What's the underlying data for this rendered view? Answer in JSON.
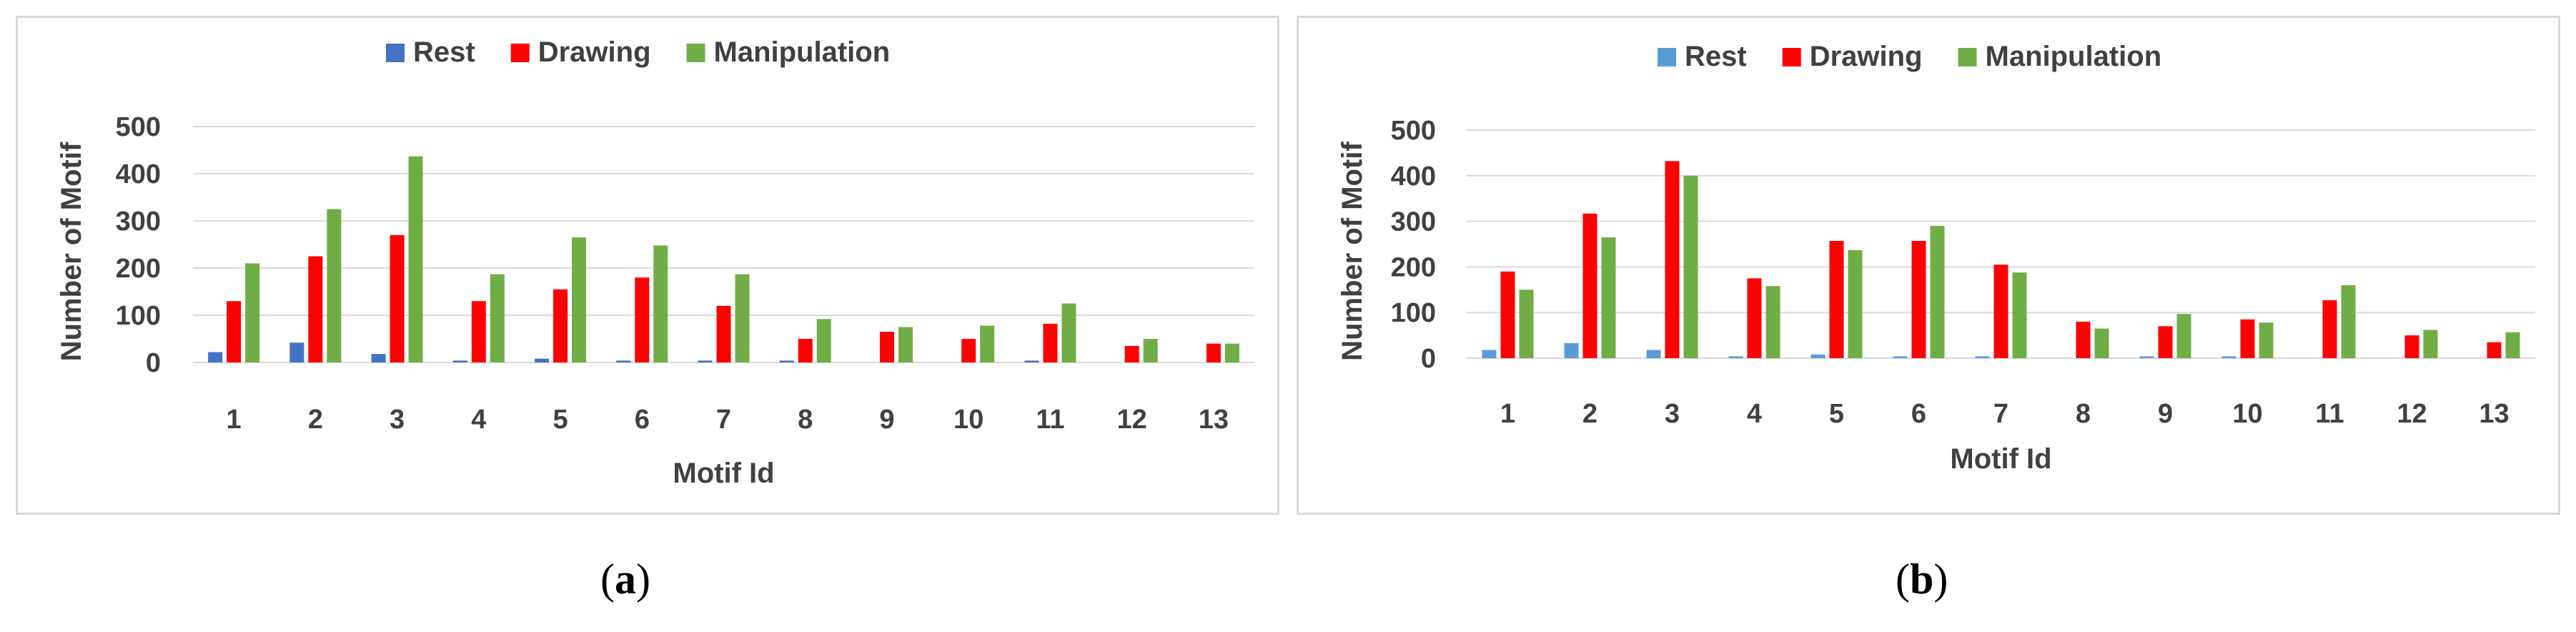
{
  "captions": {
    "a": "a",
    "b": "b"
  },
  "colors": {
    "rest": "#4472c4",
    "rest_b": "#5b9bd5",
    "drawing": "#ff0000",
    "manipulation": "#70ad47",
    "grid": "#d9d9d9",
    "axis_text": "#404040"
  },
  "chart_data": [
    {
      "panel": "a",
      "type": "bar",
      "title": "",
      "xlabel": "Motif Id",
      "ylabel": "Number of Motif",
      "ylim": [
        0,
        500
      ],
      "yticks": [
        0,
        100,
        200,
        300,
        400,
        500
      ],
      "grid": true,
      "legend_position": "top",
      "categories": [
        "1",
        "2",
        "3",
        "4",
        "5",
        "6",
        "7",
        "8",
        "9",
        "10",
        "11",
        "12",
        "13"
      ],
      "series": [
        {
          "name": "Rest",
          "values": [
            22,
            42,
            18,
            4,
            8,
            4,
            4,
            4,
            0,
            0,
            4,
            0,
            0
          ]
        },
        {
          "name": "Drawing",
          "values": [
            130,
            225,
            270,
            130,
            155,
            180,
            120,
            50,
            65,
            50,
            82,
            35,
            40
          ]
        },
        {
          "name": "Manipulation",
          "values": [
            210,
            325,
            437,
            187,
            265,
            248,
            187,
            92,
            75,
            78,
            125,
            50,
            40
          ]
        }
      ]
    },
    {
      "panel": "b",
      "type": "bar",
      "title": "",
      "xlabel": "Motif Id",
      "ylabel": "Number of Motif",
      "ylim": [
        0,
        500
      ],
      "yticks": [
        0,
        100,
        200,
        300,
        400,
        500
      ],
      "grid": true,
      "legend_position": "top",
      "categories": [
        "1",
        "2",
        "3",
        "4",
        "5",
        "6",
        "7",
        "8",
        "9",
        "10",
        "11",
        "12",
        "13"
      ],
      "series": [
        {
          "name": "Rest",
          "values": [
            18,
            33,
            18,
            4,
            8,
            4,
            4,
            0,
            4,
            4,
            0,
            0,
            0
          ]
        },
        {
          "name": "Drawing",
          "values": [
            190,
            317,
            432,
            175,
            257,
            257,
            205,
            80,
            70,
            85,
            127,
            50,
            35
          ]
        },
        {
          "name": "Manipulation",
          "values": [
            150,
            265,
            400,
            158,
            237,
            290,
            188,
            65,
            97,
            78,
            160,
            62,
            57
          ]
        }
      ]
    }
  ]
}
